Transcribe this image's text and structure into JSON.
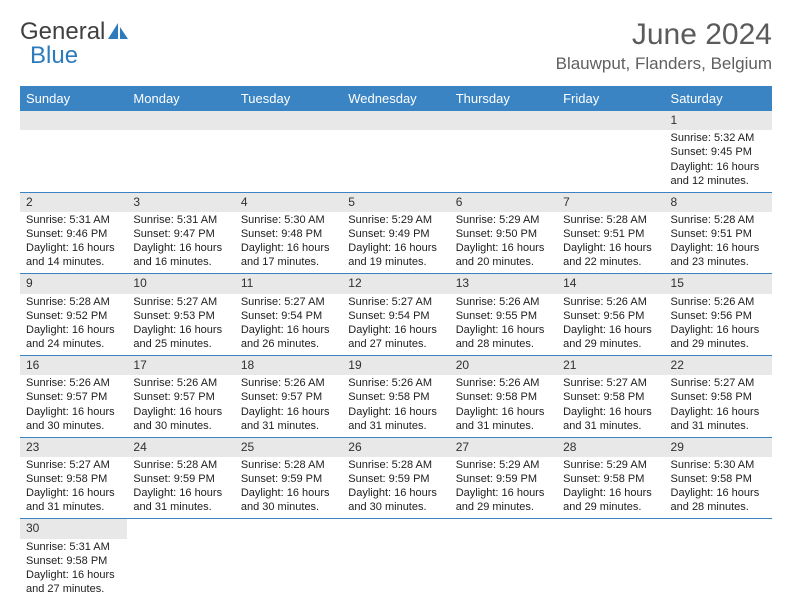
{
  "logo": {
    "text1": "General",
    "text2": "Blue"
  },
  "title": "June 2024",
  "location": "Blauwput, Flanders, Belgium",
  "colors": {
    "header_bg": "#3a84c4",
    "header_fg": "#ffffff",
    "daynum_bg": "#e8e8e8",
    "border": "#3a84c4",
    "logo_blue": "#2b7bbd",
    "text": "#202020"
  },
  "dayHeaders": [
    "Sunday",
    "Monday",
    "Tuesday",
    "Wednesday",
    "Thursday",
    "Friday",
    "Saturday"
  ],
  "weeks": [
    [
      null,
      null,
      null,
      null,
      null,
      null,
      {
        "n": "1",
        "sr": "5:32 AM",
        "ss": "9:45 PM",
        "dl": "16 hours and 12 minutes."
      }
    ],
    [
      {
        "n": "2",
        "sr": "5:31 AM",
        "ss": "9:46 PM",
        "dl": "16 hours and 14 minutes."
      },
      {
        "n": "3",
        "sr": "5:31 AM",
        "ss": "9:47 PM",
        "dl": "16 hours and 16 minutes."
      },
      {
        "n": "4",
        "sr": "5:30 AM",
        "ss": "9:48 PM",
        "dl": "16 hours and 17 minutes."
      },
      {
        "n": "5",
        "sr": "5:29 AM",
        "ss": "9:49 PM",
        "dl": "16 hours and 19 minutes."
      },
      {
        "n": "6",
        "sr": "5:29 AM",
        "ss": "9:50 PM",
        "dl": "16 hours and 20 minutes."
      },
      {
        "n": "7",
        "sr": "5:28 AM",
        "ss": "9:51 PM",
        "dl": "16 hours and 22 minutes."
      },
      {
        "n": "8",
        "sr": "5:28 AM",
        "ss": "9:51 PM",
        "dl": "16 hours and 23 minutes."
      }
    ],
    [
      {
        "n": "9",
        "sr": "5:28 AM",
        "ss": "9:52 PM",
        "dl": "16 hours and 24 minutes."
      },
      {
        "n": "10",
        "sr": "5:27 AM",
        "ss": "9:53 PM",
        "dl": "16 hours and 25 minutes."
      },
      {
        "n": "11",
        "sr": "5:27 AM",
        "ss": "9:54 PM",
        "dl": "16 hours and 26 minutes."
      },
      {
        "n": "12",
        "sr": "5:27 AM",
        "ss": "9:54 PM",
        "dl": "16 hours and 27 minutes."
      },
      {
        "n": "13",
        "sr": "5:26 AM",
        "ss": "9:55 PM",
        "dl": "16 hours and 28 minutes."
      },
      {
        "n": "14",
        "sr": "5:26 AM",
        "ss": "9:56 PM",
        "dl": "16 hours and 29 minutes."
      },
      {
        "n": "15",
        "sr": "5:26 AM",
        "ss": "9:56 PM",
        "dl": "16 hours and 29 minutes."
      }
    ],
    [
      {
        "n": "16",
        "sr": "5:26 AM",
        "ss": "9:57 PM",
        "dl": "16 hours and 30 minutes."
      },
      {
        "n": "17",
        "sr": "5:26 AM",
        "ss": "9:57 PM",
        "dl": "16 hours and 30 minutes."
      },
      {
        "n": "18",
        "sr": "5:26 AM",
        "ss": "9:57 PM",
        "dl": "16 hours and 31 minutes."
      },
      {
        "n": "19",
        "sr": "5:26 AM",
        "ss": "9:58 PM",
        "dl": "16 hours and 31 minutes."
      },
      {
        "n": "20",
        "sr": "5:26 AM",
        "ss": "9:58 PM",
        "dl": "16 hours and 31 minutes."
      },
      {
        "n": "21",
        "sr": "5:27 AM",
        "ss": "9:58 PM",
        "dl": "16 hours and 31 minutes."
      },
      {
        "n": "22",
        "sr": "5:27 AM",
        "ss": "9:58 PM",
        "dl": "16 hours and 31 minutes."
      }
    ],
    [
      {
        "n": "23",
        "sr": "5:27 AM",
        "ss": "9:58 PM",
        "dl": "16 hours and 31 minutes."
      },
      {
        "n": "24",
        "sr": "5:28 AM",
        "ss": "9:59 PM",
        "dl": "16 hours and 31 minutes."
      },
      {
        "n": "25",
        "sr": "5:28 AM",
        "ss": "9:59 PM",
        "dl": "16 hours and 30 minutes."
      },
      {
        "n": "26",
        "sr": "5:28 AM",
        "ss": "9:59 PM",
        "dl": "16 hours and 30 minutes."
      },
      {
        "n": "27",
        "sr": "5:29 AM",
        "ss": "9:59 PM",
        "dl": "16 hours and 29 minutes."
      },
      {
        "n": "28",
        "sr": "5:29 AM",
        "ss": "9:58 PM",
        "dl": "16 hours and 29 minutes."
      },
      {
        "n": "29",
        "sr": "5:30 AM",
        "ss": "9:58 PM",
        "dl": "16 hours and 28 minutes."
      }
    ],
    [
      {
        "n": "30",
        "sr": "5:31 AM",
        "ss": "9:58 PM",
        "dl": "16 hours and 27 minutes."
      },
      null,
      null,
      null,
      null,
      null,
      null
    ]
  ],
  "labels": {
    "sunrise": "Sunrise: ",
    "sunset": "Sunset: ",
    "daylight": "Daylight: "
  }
}
